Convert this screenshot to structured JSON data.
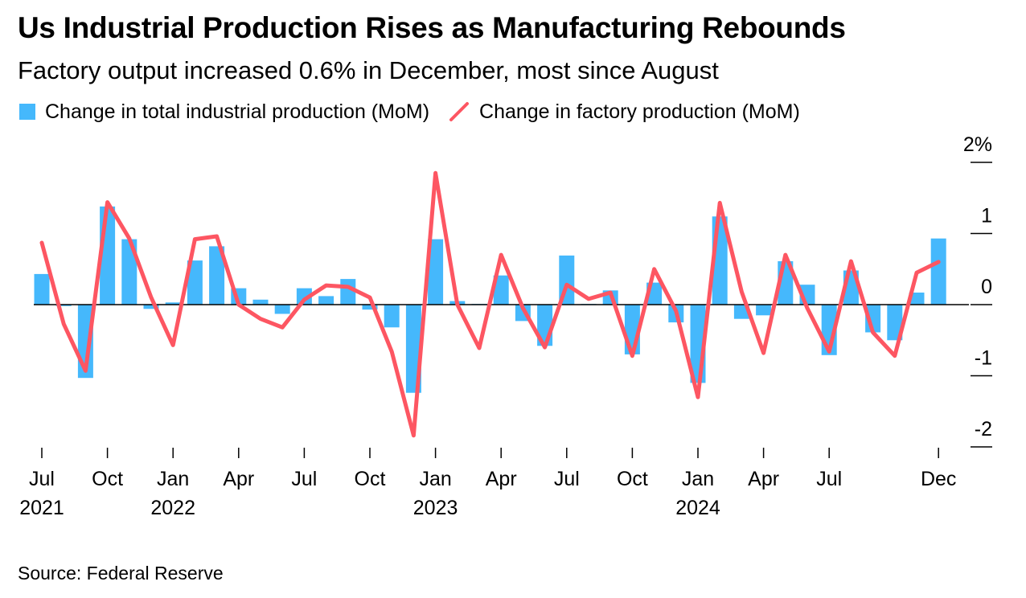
{
  "title": "Us Industrial Production Rises as Manufacturing Rebounds",
  "subtitle": "Factory output increased 0.6% in December, most since August",
  "source": "Source: Federal Reserve",
  "colors": {
    "bars": "#45b8fc",
    "line": "#fd5662",
    "axis": "#000000"
  },
  "legend": {
    "bars_label": "Change in total industrial production (MoM)",
    "line_label": "Change in factory production (MoM)"
  },
  "chart_data": {
    "type": "bar+line",
    "x": [
      "2021-07",
      "2021-08",
      "2021-09",
      "2021-10",
      "2021-11",
      "2021-12",
      "2022-01",
      "2022-02",
      "2022-03",
      "2022-04",
      "2022-05",
      "2022-06",
      "2022-07",
      "2022-08",
      "2022-09",
      "2022-10",
      "2022-11",
      "2022-12",
      "2023-01",
      "2023-02",
      "2023-03",
      "2023-04",
      "2023-05",
      "2023-06",
      "2023-07",
      "2023-08",
      "2023-09",
      "2023-10",
      "2023-11",
      "2023-12",
      "2024-01",
      "2024-02",
      "2024-03",
      "2024-04",
      "2024-05",
      "2024-06",
      "2024-07",
      "2024-08",
      "2024-09",
      "2024-10",
      "2024-11",
      "2024-12"
    ],
    "series": [
      {
        "name": "Change in total industrial production (MoM)",
        "type": "bar",
        "values": [
          0.43,
          -0.02,
          -1.03,
          1.38,
          0.92,
          -0.06,
          0.03,
          0.62,
          0.82,
          0.23,
          0.07,
          -0.13,
          0.23,
          0.12,
          0.36,
          -0.07,
          -0.32,
          -1.24,
          0.92,
          0.05,
          0.01,
          0.41,
          -0.23,
          -0.58,
          0.69,
          0.01,
          0.2,
          -0.7,
          0.31,
          -0.25,
          -1.1,
          1.24,
          -0.2,
          -0.15,
          0.61,
          0.28,
          -0.71,
          0.48,
          -0.39,
          -0.5,
          0.17,
          0.93
        ]
      },
      {
        "name": "Change in factory production (MoM)",
        "type": "line",
        "values": [
          0.87,
          -0.27,
          -0.93,
          1.44,
          0.93,
          0.1,
          -0.57,
          0.92,
          0.96,
          0.0,
          -0.2,
          -0.32,
          0.07,
          0.27,
          0.25,
          0.1,
          -0.66,
          -1.84,
          1.85,
          0.0,
          -0.61,
          0.7,
          -0.05,
          -0.6,
          0.28,
          0.08,
          0.17,
          -0.72,
          0.5,
          -0.09,
          -1.3,
          1.43,
          0.18,
          -0.68,
          0.7,
          -0.05,
          -0.66,
          0.61,
          -0.39,
          -0.72,
          0.45,
          0.6
        ]
      }
    ],
    "y_ticks": [
      {
        "value": 2,
        "label": "2%"
      },
      {
        "value": 1,
        "label": "1"
      },
      {
        "value": 0,
        "label": "0"
      },
      {
        "value": -1,
        "label": "-1"
      },
      {
        "value": -2,
        "label": "-2"
      }
    ],
    "ylim": [
      -2,
      2
    ],
    "x_ticks": [
      {
        "index": 0,
        "label": "Jul",
        "year": "2021"
      },
      {
        "index": 3,
        "label": "Oct",
        "year": ""
      },
      {
        "index": 6,
        "label": "Jan",
        "year": "2022"
      },
      {
        "index": 9,
        "label": "Apr",
        "year": ""
      },
      {
        "index": 12,
        "label": "Jul",
        "year": ""
      },
      {
        "index": 15,
        "label": "Oct",
        "year": ""
      },
      {
        "index": 18,
        "label": "Jan",
        "year": "2023"
      },
      {
        "index": 21,
        "label": "Apr",
        "year": ""
      },
      {
        "index": 24,
        "label": "Jul",
        "year": ""
      },
      {
        "index": 27,
        "label": "Oct",
        "year": ""
      },
      {
        "index": 30,
        "label": "Jan",
        "year": "2024"
      },
      {
        "index": 33,
        "label": "Apr",
        "year": ""
      },
      {
        "index": 36,
        "label": "Jul",
        "year": ""
      },
      {
        "index": 41,
        "label": "Dec",
        "year": ""
      }
    ],
    "y_axis_side": "right",
    "grid": false,
    "legend_position": "top-left"
  }
}
